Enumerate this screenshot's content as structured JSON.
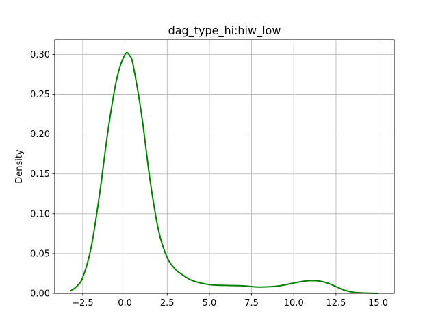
{
  "chart_data": {
    "type": "line",
    "title": "dag_type_hi:hiw_low",
    "xlabel": "",
    "ylabel": "Density",
    "xlim": [
      -4.16,
      15.95
    ],
    "ylim": [
      0,
      0.3185
    ],
    "grid": true,
    "x_ticks": [
      -2.5,
      0.0,
      2.5,
      5.0,
      7.5,
      10.0,
      12.5,
      15.0
    ],
    "x_tick_labels": [
      "−2.5",
      "0.0",
      "2.5",
      "5.0",
      "7.5",
      "10.0",
      "12.5",
      "15.0"
    ],
    "y_ticks": [
      0.0,
      0.05,
      0.1,
      0.15,
      0.2,
      0.25,
      0.3
    ],
    "y_tick_labels": [
      "0.00",
      "0.05",
      "0.10",
      "0.15",
      "0.20",
      "0.25",
      "0.30"
    ],
    "series": [
      {
        "color": "#008000",
        "x": [
          -3.25,
          -2.9,
          -2.5,
          -2.0,
          -1.5,
          -1.0,
          -0.5,
          0.0,
          0.3,
          0.5,
          1.0,
          1.5,
          2.0,
          2.5,
          3.0,
          3.5,
          4.0,
          5.0,
          6.0,
          7.0,
          7.5,
          8.0,
          9.0,
          10.0,
          10.5,
          11.0,
          11.5,
          12.0,
          12.5,
          13.0,
          13.5,
          14.0,
          14.5,
          15.0
        ],
        "y": [
          0.003,
          0.008,
          0.02,
          0.058,
          0.125,
          0.205,
          0.268,
          0.3,
          0.298,
          0.285,
          0.222,
          0.14,
          0.078,
          0.045,
          0.03,
          0.022,
          0.016,
          0.011,
          0.01,
          0.0095,
          0.0085,
          0.008,
          0.009,
          0.013,
          0.015,
          0.016,
          0.0155,
          0.013,
          0.0085,
          0.004,
          0.0015,
          0.0006,
          0.0002,
          0.0001
        ]
      }
    ]
  }
}
